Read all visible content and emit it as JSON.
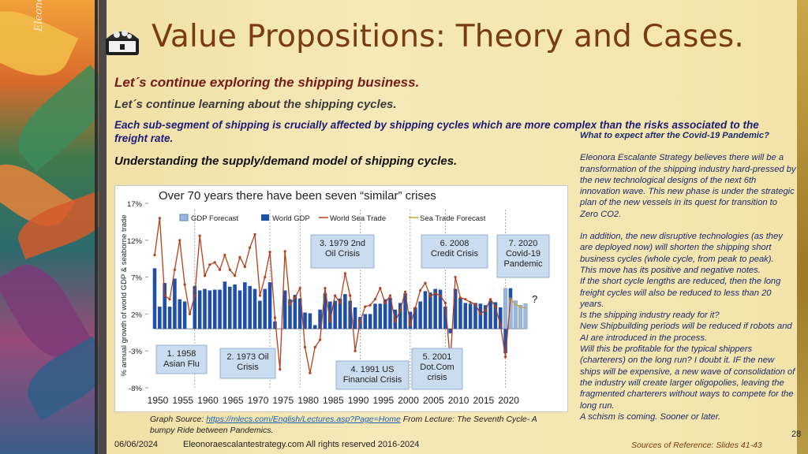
{
  "slide": {
    "title": "Value Propositions: Theory and Cases.",
    "signature": "Eleonora Escalante",
    "subtitle1": "Let´s continue exploring the shipping business.",
    "subtitle2": "Let´s continue learning about the shipping cycles.",
    "subtitle3": "Each sub-segment of shipping is crucially affected by shipping cycles which are more complex than the risks associated to the freight rate.",
    "subtitle4": "Understanding the supply/demand model of shipping cycles.",
    "source_prefix": "Graph Source: ",
    "source_link": "https://mlecs.com/English/Lectures.asp?Page=Home",
    "source_suffix": " From Lecture: The Seventh Cycle- A bumpy Ride between Pandemics.",
    "date": "06/06/2024",
    "site": "Eleonoraescalantestrategy.com  All rights reserved 2016-2024",
    "references": "Sources of Reference: Slides 41-43",
    "page_number": "28"
  },
  "right_panel": {
    "heading": "What to expect after the Covid-19 Pandemic?",
    "p1": "Eleonora Escalante Strategy believes there will be a transformation of the shipping industry hard-pressed by the new technological designs of the next 6th innovation wave. This new phase is under the strategic plan of the new vessels in its quest for transition to Zero CO2.",
    "p2": "In addition, the new disruptive technologies (as they are deployed now) will shorten the shipping short business cycles (whole cycle, from peak to peak).",
    "p3": "This move has its positive and negative notes.",
    "p4": "If the short cycle lengths are reduced, then the long freight cycles will also be reduced to less than 20 years.",
    "p5": "Is the shipping industry ready for it?",
    "p6": "New Shipbuilding periods will be reduced if robots and AI are introduced in the process.",
    "p7": "Will this be profitable for the typical shippers (charterers) on the long run? I doubt it. IF the new ships will be expensive,  a new wave of consolidation of the industry will create larger oligopolies, leaving the fragmented charterers without ways to compete for the long run.",
    "p8": "A schism is coming. Sooner or later."
  },
  "colors": {
    "title": "#7a3b12",
    "accent_red": "#7a1a17",
    "navy": "#1b1b78",
    "bar": "#1f4fa8",
    "line": "#b5401c",
    "forecast": "#c9a23a"
  },
  "chart_data": {
    "type": "bar",
    "title": "Over 70 years there have been seven “similar” crises",
    "ylabel": "% annual growth of world GDP & seaborne trade",
    "ylim": [
      -8,
      17
    ],
    "yticks": [
      "-8%",
      "-3%",
      "2%",
      "7%",
      "12%",
      "17%"
    ],
    "xticks": [
      "1950",
      "1955",
      "1960",
      "1965",
      "1970",
      "1975",
      "1980",
      "1985",
      "1990",
      "1995",
      "2000",
      "2005",
      "2010",
      "2015",
      "2020"
    ],
    "legend": [
      "GDP Forecast",
      "World GDP",
      "World Sea Trade",
      "Sea Trade Forecast"
    ],
    "years": [
      1950,
      1951,
      1952,
      1953,
      1954,
      1955,
      1956,
      1957,
      1958,
      1959,
      1960,
      1961,
      1962,
      1963,
      1964,
      1965,
      1966,
      1967,
      1968,
      1969,
      1970,
      1971,
      1972,
      1973,
      1974,
      1975,
      1976,
      1977,
      1978,
      1979,
      1980,
      1981,
      1982,
      1983,
      1984,
      1985,
      1986,
      1987,
      1988,
      1989,
      1990,
      1991,
      1992,
      1993,
      1994,
      1995,
      1996,
      1997,
      1998,
      1999,
      2000,
      2001,
      2002,
      2003,
      2004,
      2005,
      2006,
      2007,
      2008,
      2009,
      2010,
      2011,
      2012,
      2013,
      2014,
      2015,
      2016,
      2017,
      2018,
      2019,
      2020,
      2021
    ],
    "world_gdp": [
      8.2,
      3,
      6.2,
      3,
      6.8,
      4,
      3.7,
      0,
      5.8,
      5.2,
      5.4,
      5.2,
      5.3,
      5.3,
      6.4,
      5.7,
      6,
      5.2,
      6.3,
      5.8,
      5.4,
      3.8,
      5.4,
      6.3,
      1,
      0,
      5.2,
      4,
      4.6,
      4.1,
      2.2,
      2.1,
      0.5,
      2.6,
      4.8,
      3.7,
      3.8,
      4.1,
      4.7,
      3.8,
      2.9,
      1.6,
      2,
      2,
      3.4,
      3.4,
      4,
      4.2,
      2.6,
      3.5,
      4.8,
      2.3,
      2.9,
      3.7,
      5.1,
      4.9,
      5.4,
      5.3,
      3,
      -0.6,
      5.4,
      4.2,
      3.5,
      3.4,
      3.5,
      3.4,
      3.2,
      3.8,
      3.6,
      2.9,
      -3.3,
      5.5
    ],
    "world_sea_trade": [
      10,
      15,
      4.5,
      4,
      8,
      12,
      6,
      2,
      4.5,
      12.6,
      7.2,
      8.7,
      9,
      8,
      10,
      8,
      7.2,
      9.7,
      8.4,
      11,
      12.8,
      4.5,
      7,
      10.4,
      1.5,
      -5.5,
      10.5,
      3.3,
      4.2,
      5.5,
      -2.5,
      -6,
      -2.5,
      -1.5,
      5.5,
      1,
      4.5,
      3.5,
      7.5,
      4.5,
      -3,
      1,
      3,
      3.2,
      4,
      5.5,
      3.5,
      4.5,
      1,
      2.5,
      5,
      0.5,
      2.8,
      5.2,
      6.2,
      4.4,
      4.8,
      4.5,
      3.5,
      -4.5,
      7,
      4.2,
      4,
      3.6,
      3.3,
      2,
      2.5,
      4,
      3,
      0.5,
      -3.8,
      4
    ],
    "gdp_forecast": [
      [
        2020,
        5.5
      ],
      [
        2021,
        4.2
      ],
      [
        2022,
        3.8
      ],
      [
        2023,
        3.2
      ],
      [
        2024,
        3.4
      ]
    ],
    "sea_trade_forecast": [
      [
        2021,
        4
      ],
      [
        2022,
        3.3
      ],
      [
        2023,
        3.0
      ],
      [
        2024,
        2.8
      ]
    ],
    "crises": [
      {
        "label": "1. 1958 Asian Flu",
        "year": 1958
      },
      {
        "label": "2. 1973 Oil Crisis",
        "year": 1973
      },
      {
        "label": "3. 1979 2nd Oil Crisis",
        "year": 1979
      },
      {
        "label": "4. 1991 US Financial Crisis",
        "year": 1991
      },
      {
        "label": "5. 2001 Dot.Com crisis",
        "year": 2001
      },
      {
        "label": "6. 2008 Credit Crisis",
        "year": 2008
      },
      {
        "label": "7. 2020 Covid-19 Pandemic",
        "year": 2020
      }
    ],
    "question_mark": "?"
  }
}
